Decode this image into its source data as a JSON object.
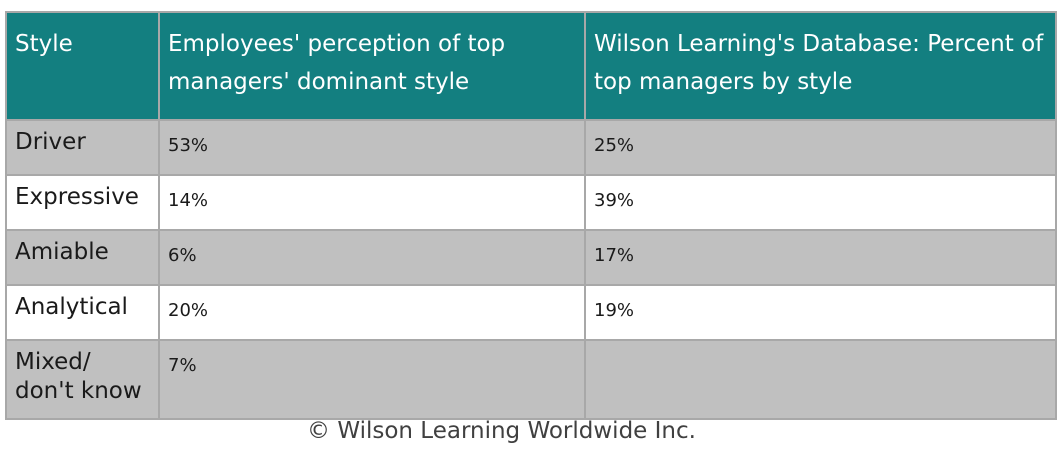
{
  "table": {
    "headers": [
      "Style",
      "Employees' perception of top managers' dominant style",
      "Wilson Learning's Database: Percent of top managers by style"
    ],
    "rows": [
      {
        "style": "Driver",
        "employees": "53%",
        "database": "25%"
      },
      {
        "style": "Expressive",
        "employees": "14%",
        "database": "39%"
      },
      {
        "style": "Amiable",
        "employees": "6%",
        "database": "17%"
      },
      {
        "style": "Analytical",
        "employees": "20%",
        "database": "19%"
      },
      {
        "style": "Mixed/ don't know",
        "employees": "7%",
        "database": ""
      }
    ]
  },
  "colors": {
    "header_bg": "#137f80",
    "header_text": "#ffffff",
    "row_gray": "#c0c0c0",
    "row_white": "#ffffff",
    "border": "#a8a8a8"
  },
  "footer": {
    "copyright": "© Wilson Learning Worldwide Inc."
  }
}
